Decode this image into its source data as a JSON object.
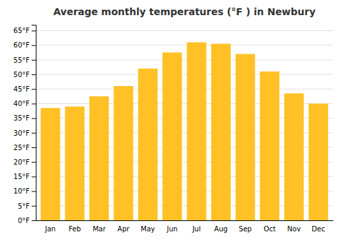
{
  "chart_data": {
    "type": "bar",
    "title": "Average monthly temperatures (°F ) in Newbury",
    "categories": [
      "Jan",
      "Feb",
      "Mar",
      "Apr",
      "May",
      "Jun",
      "Jul",
      "Aug",
      "Sep",
      "Oct",
      "Nov",
      "Dec"
    ],
    "values": [
      38.5,
      39.0,
      42.5,
      46.0,
      52.0,
      57.5,
      61.0,
      60.5,
      57.0,
      51.0,
      43.5,
      40.0
    ],
    "color": "#FFC125",
    "ylim": [
      0,
      67
    ],
    "yticks": [
      {
        "value": 0,
        "label": "0°F"
      },
      {
        "value": 5,
        "label": "5°F"
      },
      {
        "value": 10,
        "label": "10°F"
      },
      {
        "value": 15,
        "label": "15°F"
      },
      {
        "value": 20,
        "label": "20°F"
      },
      {
        "value": 25,
        "label": "25°F"
      },
      {
        "value": 30,
        "label": "30°F"
      },
      {
        "value": 35,
        "label": "35°F"
      },
      {
        "value": 40,
        "label": "40°F"
      },
      {
        "value": 45,
        "label": "45°F"
      },
      {
        "value": 50,
        "label": "50°F"
      },
      {
        "value": 55,
        "label": "55°F"
      },
      {
        "value": 60,
        "label": "60°F"
      },
      {
        "value": 65,
        "label": "65°F"
      }
    ],
    "grid": true
  }
}
